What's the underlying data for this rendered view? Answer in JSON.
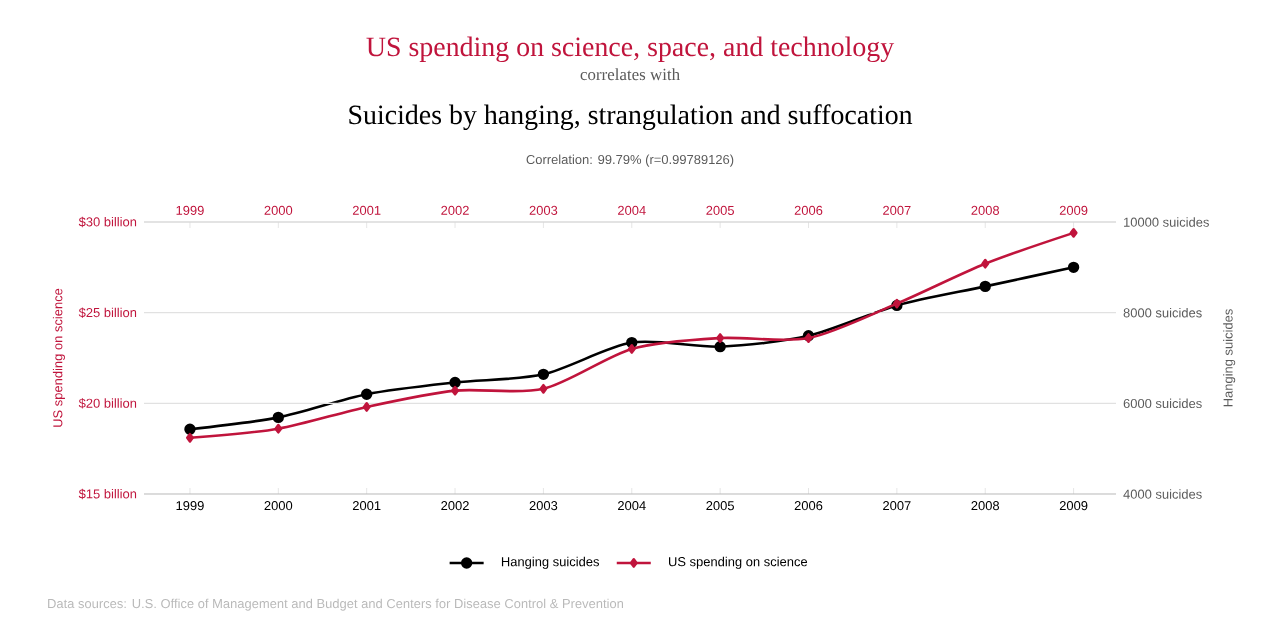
{
  "chart_data": {
    "type": "line",
    "title": "US spending on science, space, and technology",
    "subtitle": "correlates with",
    "annotations": [
      "Suicides by hanging, strangulation and suffocation",
      "Correlation: 99.79% (r=0.99789126)",
      "Data sources: U.S. Office of Management and Budget and Centers for Disease Control & Prevention"
    ],
    "x": [
      1999,
      2000,
      2001,
      2002,
      2003,
      2004,
      2005,
      2006,
      2007,
      2008,
      2009
    ],
    "series": [
      {
        "name": "Hanging suicides",
        "color": "#000000",
        "axis": "y2",
        "marker": "circle",
        "values": [
          5430,
          5690,
          6200,
          6460,
          6640,
          7340,
          7250,
          7490,
          8160,
          8580,
          9000
        ]
      },
      {
        "name": "US spending on science",
        "color": "#c0143c",
        "axis": "y",
        "marker": "diamond",
        "values": [
          18.1,
          18.6,
          19.8,
          20.7,
          20.8,
          23.0,
          23.6,
          23.6,
          25.5,
          27.7,
          29.4
        ]
      }
    ],
    "ylabel": "US spending on science",
    "y2label": "Hanging suicides",
    "xlim": [
      1998.48,
      2009.48
    ],
    "xticks": [
      1999,
      2000,
      2001,
      2002,
      2003,
      2004,
      2005,
      2006,
      2007,
      2008,
      2009
    ],
    "x2lim": [
      1998.48,
      2009.48
    ],
    "x2ticks": [
      1999,
      2000,
      2001,
      2002,
      2003,
      2004,
      2005,
      2006,
      2007,
      2008,
      2009
    ],
    "ylim": [
      15,
      30
    ],
    "yticks": [
      {
        "value": 15,
        "label": "$15 billion"
      },
      {
        "value": 20,
        "label": "$20 billion"
      },
      {
        "value": 25,
        "label": "$25 billion"
      },
      {
        "value": 30,
        "label": "$30 billion"
      }
    ],
    "y2lim": [
      4000,
      10000
    ],
    "y2ticks": [
      {
        "value": 4000,
        "label": "4000 suicides"
      },
      {
        "value": 6000,
        "label": "6000 suicides"
      },
      {
        "value": 8000,
        "label": "8000 suicides"
      },
      {
        "value": 10000,
        "label": "10000 suicides"
      }
    ],
    "grid": "y",
    "legend": "bottom"
  }
}
